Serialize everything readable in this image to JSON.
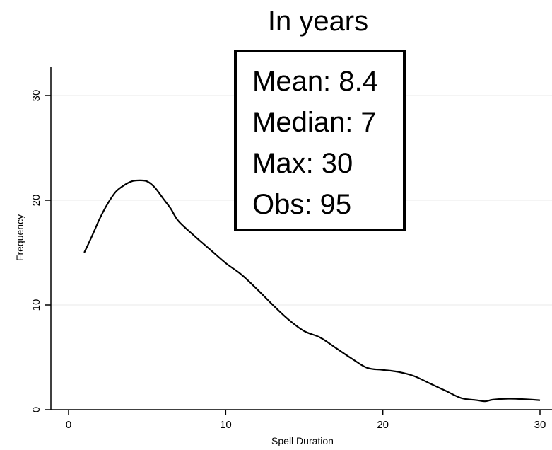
{
  "chart_data": {
    "type": "line",
    "title": "In years",
    "xlabel": "Spell Duration",
    "ylabel": "Frequency",
    "xlim": [
      0,
      30
    ],
    "ylim": [
      0,
      30
    ],
    "xticks": [
      "0",
      "10",
      "20",
      "30"
    ],
    "yticks": [
      "0",
      "10",
      "20",
      "30"
    ],
    "grid": true,
    "series": [
      {
        "x": [
          1,
          1.5,
          2,
          2.5,
          3,
          3.5,
          4,
          4.5,
          5,
          5.5,
          6,
          6.5,
          7,
          8,
          9,
          10,
          11,
          12,
          13,
          14,
          15,
          16,
          17,
          18,
          19,
          20,
          21,
          22,
          23,
          24,
          25,
          26,
          26.5,
          27,
          28,
          29,
          30
        ],
        "y": [
          15,
          16.6,
          18.3,
          19.7,
          20.8,
          21.4,
          21.8,
          21.9,
          21.8,
          21.2,
          20.2,
          19.2,
          18.0,
          16.6,
          15.3,
          14.0,
          12.9,
          11.5,
          10.0,
          8.6,
          7.5,
          6.9,
          5.9,
          4.9,
          4.0,
          3.8,
          3.6,
          3.2,
          2.5,
          1.8,
          1.1,
          0.9,
          0.8,
          0.95,
          1.05,
          1.0,
          0.9
        ],
        "color": "#000000"
      }
    ]
  },
  "stats": {
    "mean": "Mean: 8.4",
    "median": "Median: 7",
    "max": "Max: 30",
    "obs": "Obs: 95"
  }
}
